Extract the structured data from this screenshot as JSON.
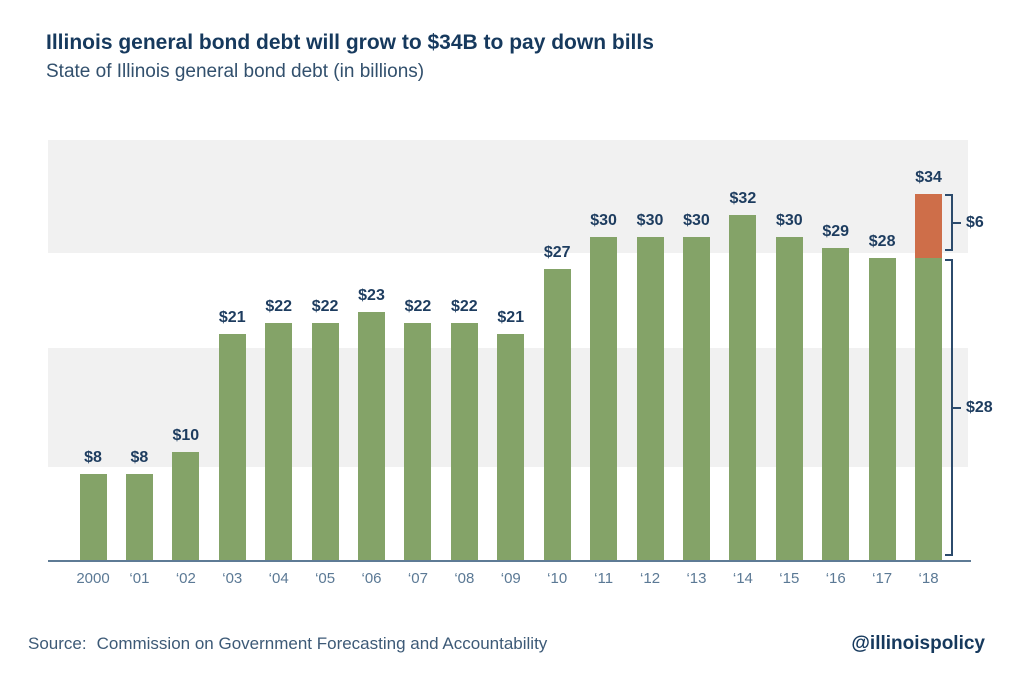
{
  "header": {
    "title": "Illinois general bond debt will grow to $34B to pay down bills",
    "subtitle": "State of Illinois general bond debt (in billions)"
  },
  "chart_data": {
    "type": "bar",
    "title": "Illinois general bond debt will grow to $34B to pay down bills",
    "subtitle": "State of Illinois general bond debt (in billions)",
    "categories": [
      "2000",
      "‘01",
      "‘02",
      "‘03",
      "‘04",
      "‘05",
      "‘06",
      "‘07",
      "‘08",
      "‘09",
      "‘10",
      "‘11",
      "‘12",
      "‘13",
      "‘14",
      "‘15",
      "‘16",
      "‘17",
      "‘18"
    ],
    "values": [
      8,
      8,
      10,
      21,
      22,
      22,
      23,
      22,
      22,
      21,
      27,
      30,
      30,
      30,
      32,
      30,
      29,
      28,
      34
    ],
    "bar_labels": [
      "$8",
      "$8",
      "$10",
      "$21",
      "$22",
      "$22",
      "$23",
      "$22",
      "$22",
      "$21",
      "$27",
      "$30",
      "$30",
      "$30",
      "$32",
      "$30",
      "$29",
      "$28",
      "$34"
    ],
    "stacked_final_bar": {
      "category": "‘18",
      "base_value": 28,
      "top_value": 6
    },
    "brackets": [
      {
        "label": "$6",
        "from": 28,
        "to": 34
      },
      {
        "label": "$28",
        "from": 0,
        "to": 28
      }
    ],
    "xlabel": "",
    "ylabel": "",
    "ylim": [
      0,
      39
    ],
    "legend": "none",
    "grid": "alternating horizontal gray bands",
    "bar_color": "#84a368",
    "highlight_color": "#ce6e49",
    "band_color": "#f1f1f1",
    "axis_color": "#5e7b95",
    "label_color": "#1d3c5f",
    "tick_label_color": "#5b7995"
  },
  "footer": {
    "source_label": "Source:",
    "source_text": "Commission on Government Forecasting and Accountability",
    "handle": "@illinoispolicy"
  }
}
